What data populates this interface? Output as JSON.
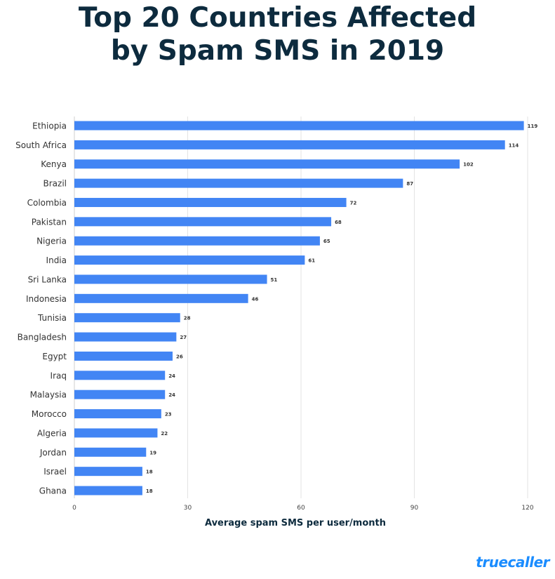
{
  "chart_data": {
    "type": "bar",
    "orientation": "horizontal",
    "title": "Top 20 Countries Affected by Spam SMS in 2019",
    "title_lines": [
      "Top 20 Countries Affected",
      "by Spam SMS in 2019"
    ],
    "xlabel": "Average spam SMS per user/month",
    "ylabel": "",
    "xlim": [
      0,
      120
    ],
    "xticks": [
      0,
      30,
      60,
      90,
      120
    ],
    "grid": true,
    "categories": [
      "Ethiopia",
      "South Africa",
      "Kenya",
      "Brazil",
      "Colombia",
      "Pakistan",
      "Nigeria",
      "India",
      "Sri Lanka",
      "Indonesia",
      "Tunisia",
      "Bangladesh",
      "Egypt",
      "Iraq",
      "Malaysia",
      "Morocco",
      "Algeria",
      "Jordan",
      "Israel",
      "Ghana"
    ],
    "values": [
      119,
      114,
      102,
      87,
      72,
      68,
      65,
      61,
      51,
      46,
      28,
      27,
      26,
      24,
      24,
      23,
      22,
      19,
      18,
      18
    ],
    "bar_color": "#4285f4"
  },
  "brand": {
    "logo_text": "truecaller",
    "color": "#1a8cff"
  }
}
